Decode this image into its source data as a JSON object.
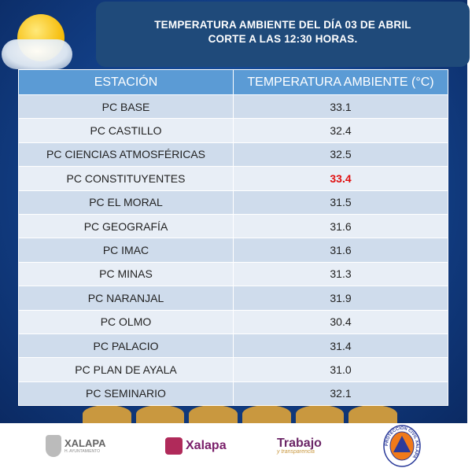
{
  "title": {
    "line1": "TEMPERATURA AMBIENTE DEL DÍA 03 DE ABRIL",
    "line2": "CORTE A LAS 12:30 HORAS."
  },
  "table": {
    "headers": [
      "ESTACIÓN",
      "TEMPERATURA AMBIENTE (°C)"
    ],
    "rows": [
      {
        "station": "PC BASE",
        "temp": "33.1"
      },
      {
        "station": "PC CASTILLO",
        "temp": "32.4"
      },
      {
        "station": "PC CIENCIAS ATMOSFÉRICAS",
        "temp": "32.5"
      },
      {
        "station": "PC CONSTITUYENTES",
        "temp": "33.4",
        "highlight": true
      },
      {
        "station": "PC EL MORAL",
        "temp": "31.5"
      },
      {
        "station": "PC GEOGRAFÍA",
        "temp": "31.6"
      },
      {
        "station": "PC IMAC",
        "temp": "31.6"
      },
      {
        "station": "PC MINAS",
        "temp": "31.3"
      },
      {
        "station": "PC NARANJAL",
        "temp": "31.9"
      },
      {
        "station": "PC OLMO",
        "temp": "30.4"
      },
      {
        "station": "PC PALACIO",
        "temp": "31.4"
      },
      {
        "station": "PC PLAN DE AYALA",
        "temp": "31.0"
      },
      {
        "station": "PC SEMINARIO",
        "temp": "32.1"
      }
    ]
  },
  "footer": {
    "logo1": "XALAPA",
    "logo1_sub": "H. AYUNTAMIENTO",
    "logo2": "Xalapa",
    "logo3": "Trabajo",
    "logo3_sub": "y transparencia",
    "logo4": "PROTECCIÓN CIVIL XALAPA"
  },
  "colors": {
    "highlight": "#e01010",
    "header": "#5b9bd5"
  }
}
